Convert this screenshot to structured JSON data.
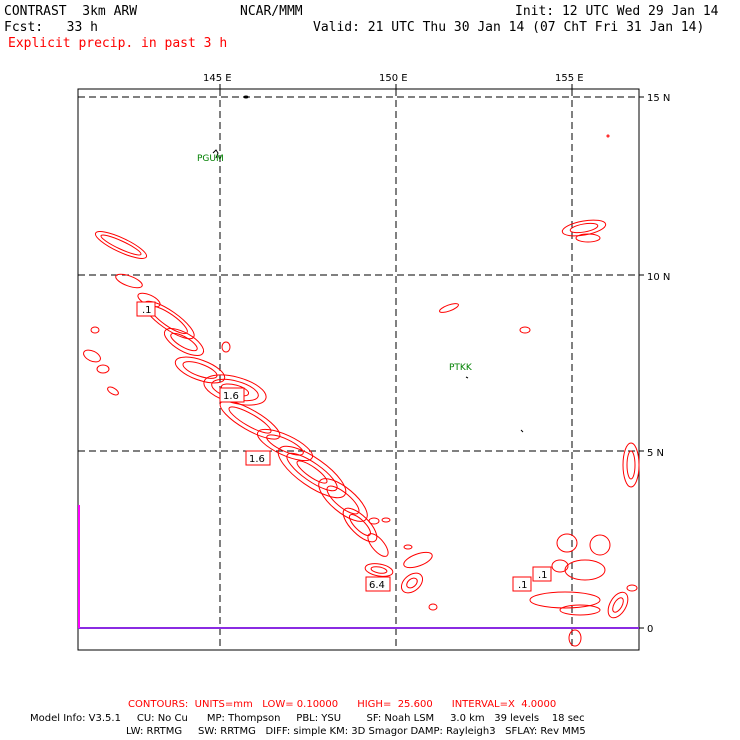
{
  "header": {
    "model": "CONTRAST  3km ARW",
    "org": "NCAR/MMM",
    "init": "Init: 12 UTC Wed 29 Jan 14",
    "fcst": "Fcst:   33 h",
    "valid": "Valid: 21 UTC Thu 30 Jan 14 (07 ChT Fri 31 Jan 14)",
    "field": "Explicit precip. in past 3 h"
  },
  "axes": {
    "lon_labels": [
      "145 E",
      "150 E",
      "155 E"
    ],
    "lat_labels": [
      "15 N",
      "10 N",
      "5 N",
      "0"
    ]
  },
  "stations": [
    "PGUM",
    "PTKK"
  ],
  "contour_labels": [
    ".1",
    "1.6",
    "1.6",
    "6.4",
    ".1",
    ".1"
  ],
  "footer": {
    "contours": "CONTOURS:  UNITS=mm   LOW= 0.10000      HIGH=  25.600      INTERVAL=X  4.0000",
    "line1": "Model Info: V3.5.1     CU: No Cu      MP: Thompson     PBL: YSU        SF: Noah LSM     3.0 km   39 levels    18 sec",
    "line2": "LW: RRTMG     SW: RRTMG   DIFF: simple KM: 3D Smagor DAMP: Rayleigh3   SFLAY: Rev MM5"
  },
  "colors": {
    "contour": "#ff0000",
    "station": "#008000",
    "equator_line": "#8a2be2",
    "boundary": "#ff00ff"
  }
}
